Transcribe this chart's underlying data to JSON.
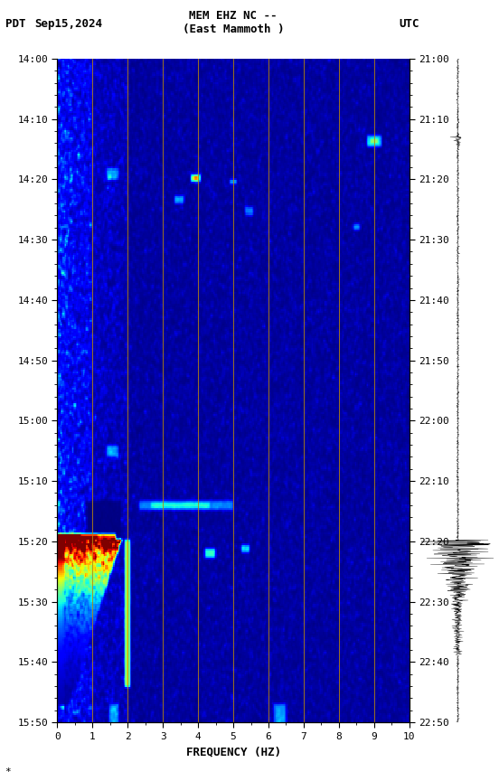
{
  "title_line1": "MEM EHZ NC --",
  "title_line2": "(East Mammoth )",
  "left_label": "PDT",
  "date_label": "Sep15,2024",
  "right_label": "UTC",
  "xlabel": "FREQUENCY (HZ)",
  "freq_min": 0,
  "freq_max": 10,
  "freq_ticks": [
    0,
    1,
    2,
    3,
    4,
    5,
    6,
    7,
    8,
    9,
    10
  ],
  "pdt_ticks": [
    "14:00",
    "14:10",
    "14:20",
    "14:30",
    "14:40",
    "14:50",
    "15:00",
    "15:10",
    "15:20",
    "15:30",
    "15:40",
    "15:50"
  ],
  "utc_ticks": [
    "21:00",
    "21:10",
    "21:20",
    "21:30",
    "21:40",
    "21:50",
    "22:00",
    "22:10",
    "22:20",
    "22:30",
    "22:40",
    "22:50"
  ],
  "vertical_lines_freq": [
    1,
    2,
    3,
    4,
    5,
    6,
    7,
    8,
    9
  ],
  "vertical_line_color": "#b8860b",
  "colormap": "jet",
  "fig_width": 5.52,
  "fig_height": 8.64,
  "font_size": 9,
  "title_font_size": 9
}
